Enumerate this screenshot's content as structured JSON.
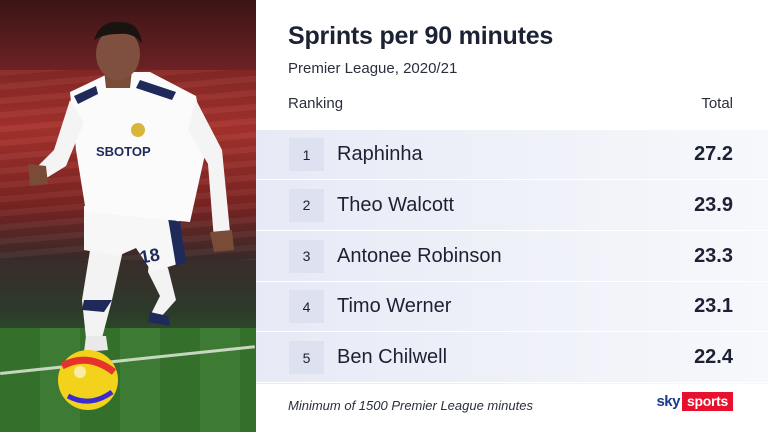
{
  "header": {
    "title": "Sprints per 90 minutes",
    "subtitle": "Premier League, 2020/21",
    "rank_heading": "Ranking",
    "total_heading": "Total"
  },
  "footer": {
    "note": "Minimum of 1500 Premier League minutes",
    "logo_sky": "sky",
    "logo_sports": "sports"
  },
  "photo": {
    "shirt_text": "SBOTOP",
    "shirt_number": "18"
  },
  "colors": {
    "accent_red": "#e8112d",
    "brand_blue": "#1a3b8c",
    "text_dark": "#1c2233",
    "row_band": "#e7eaf6"
  },
  "chart_data": {
    "type": "table",
    "title": "Sprints per 90 minutes",
    "subtitle": "Premier League, 2020/21",
    "columns": [
      "Ranking",
      "Total"
    ],
    "rows": [
      {
        "rank": "1",
        "name": "Raphinha",
        "total": "27.2"
      },
      {
        "rank": "2",
        "name": "Theo Walcott",
        "total": "23.9"
      },
      {
        "rank": "3",
        "name": "Antonee Robinson",
        "total": "23.3"
      },
      {
        "rank": "4",
        "name": "Timo Werner",
        "total": "23.1"
      },
      {
        "rank": "5",
        "name": "Ben Chilwell",
        "total": "22.4"
      }
    ]
  }
}
